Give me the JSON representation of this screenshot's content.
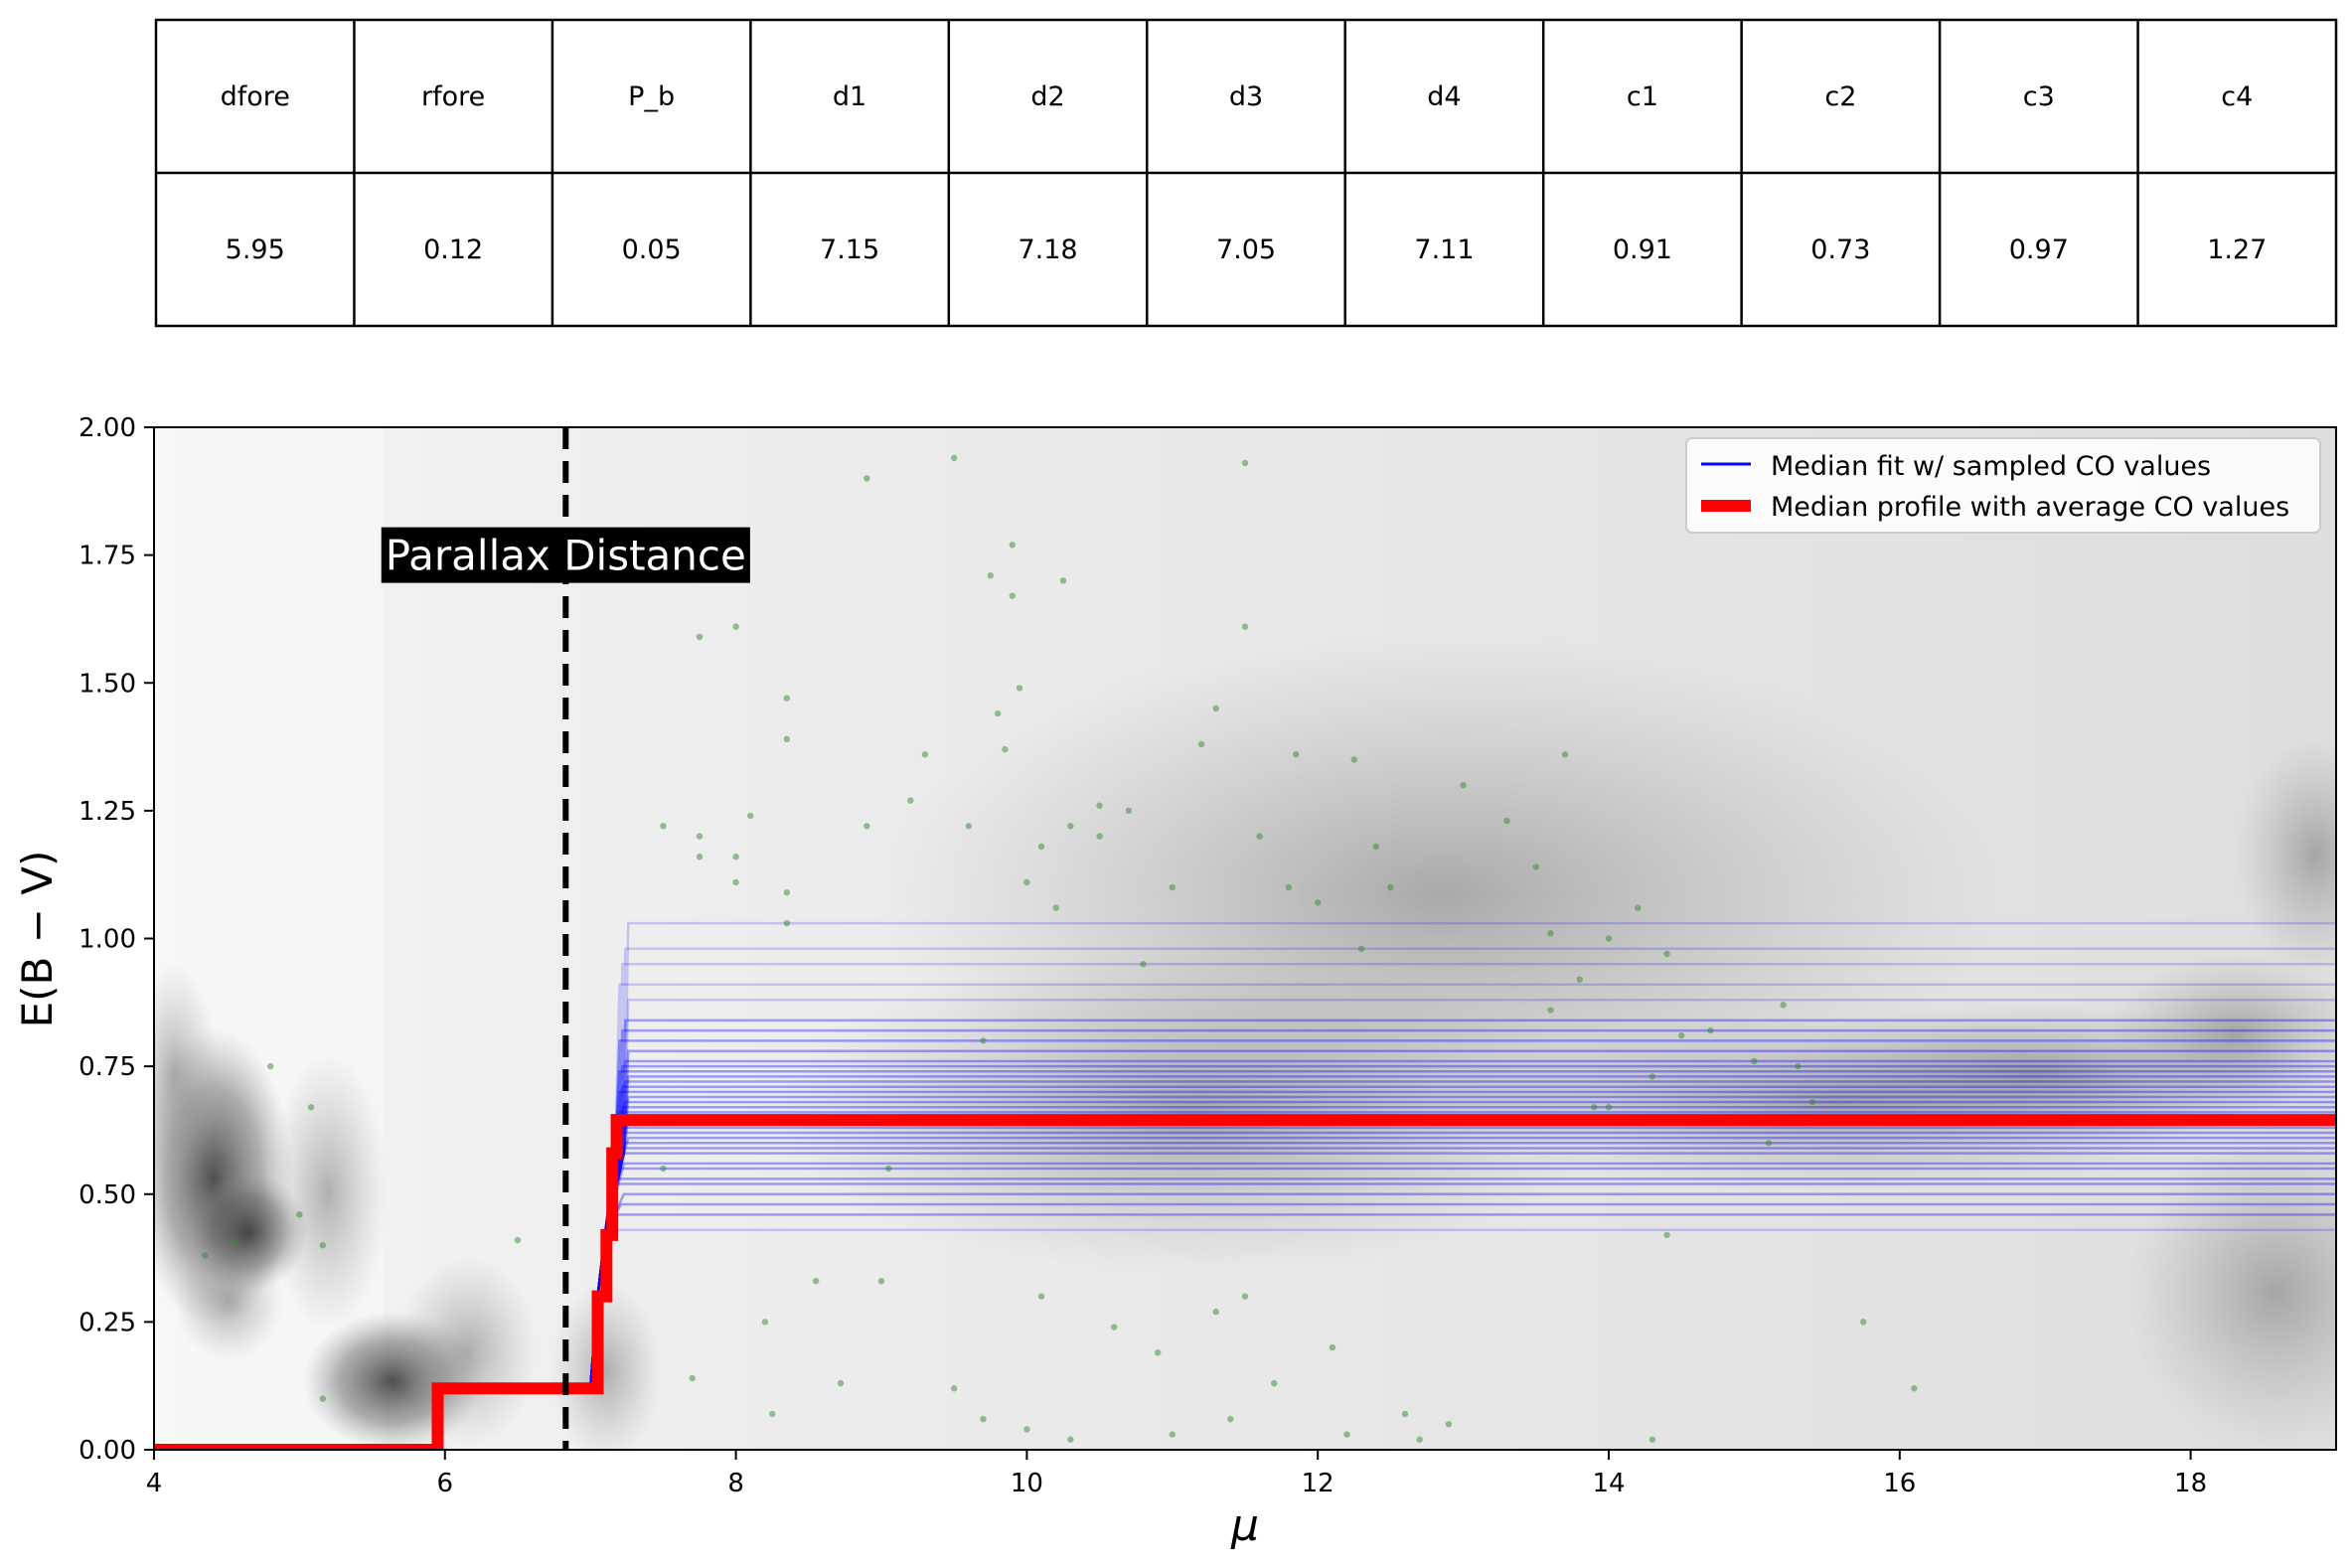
{
  "table": {
    "headers": [
      "dfore",
      "rfore",
      "P_b",
      "d1",
      "d2",
      "d3",
      "d4",
      "c1",
      "c2",
      "c3",
      "c4"
    ],
    "values": [
      "5.95",
      "0.12",
      "0.05",
      "7.15",
      "7.18",
      "7.05",
      "7.11",
      "0.91",
      "0.73",
      "0.97",
      "1.27"
    ]
  },
  "chart_data": {
    "type": "line",
    "xlabel": "μ",
    "ylabel": "E(B − V)",
    "xlim": [
      4,
      19
    ],
    "ylim": [
      0,
      2
    ],
    "xticks": [
      "4",
      "6",
      "8",
      "10",
      "12",
      "14",
      "16",
      "18"
    ],
    "yticks": [
      "0.00",
      "0.25",
      "0.50",
      "0.75",
      "1.00",
      "1.25",
      "1.50",
      "1.75",
      "2.00"
    ],
    "grid": false,
    "legend_position": "top-right",
    "annotation": {
      "text": "Parallax Distance",
      "x": 6.83
    },
    "parallax_distance": 6.83,
    "legend": [
      {
        "label": "Median fit w/ sampled CO values",
        "color": "#0000ff"
      },
      {
        "label": "Median profile with average CO values",
        "color": "#ff0000"
      }
    ],
    "series": [
      {
        "name": "Median profile with average CO values",
        "color": "#ff0000",
        "step_points": [
          [
            4.0,
            0.0
          ],
          [
            5.95,
            0.0
          ],
          [
            5.95,
            0.12
          ],
          [
            7.05,
            0.12
          ],
          [
            7.05,
            0.3
          ],
          [
            7.11,
            0.3
          ],
          [
            7.11,
            0.42
          ],
          [
            7.15,
            0.42
          ],
          [
            7.15,
            0.58
          ],
          [
            7.18,
            0.58
          ],
          [
            7.18,
            0.645
          ],
          [
            19.0,
            0.645
          ]
        ]
      },
      {
        "name": "Median fit w/ sampled CO values",
        "color": "#0000ff",
        "plateau_levels": [
          0.43,
          0.46,
          0.48,
          0.5,
          0.52,
          0.53,
          0.55,
          0.56,
          0.58,
          0.59,
          0.6,
          0.61,
          0.62,
          0.63,
          0.64,
          0.65,
          0.66,
          0.67,
          0.68,
          0.69,
          0.7,
          0.71,
          0.72,
          0.73,
          0.74,
          0.75,
          0.76,
          0.78,
          0.8,
          0.82,
          0.84,
          0.88,
          0.91,
          0.95,
          0.98,
          1.03
        ],
        "start_x": 7.2
      }
    ],
    "scatter_points": [
      [
        4.8,
        0.75
      ],
      [
        5.08,
        0.67
      ],
      [
        4.35,
        0.38
      ],
      [
        4.55,
        0.41
      ],
      [
        5.0,
        0.46
      ],
      [
        5.16,
        0.4
      ],
      [
        6.5,
        0.41
      ],
      [
        5.16,
        0.1
      ],
      [
        6.1,
        0.12
      ],
      [
        7.5,
        0.55
      ],
      [
        7.5,
        1.22
      ],
      [
        7.75,
        1.59
      ],
      [
        7.75,
        1.16
      ],
      [
        7.75,
        1.2
      ],
      [
        7.7,
        0.14
      ],
      [
        8.0,
        1.61
      ],
      [
        8.0,
        1.16
      ],
      [
        8.0,
        1.11
      ],
      [
        8.1,
        1.24
      ],
      [
        8.2,
        0.25
      ],
      [
        8.25,
        0.07
      ],
      [
        8.35,
        1.47
      ],
      [
        8.35,
        1.39
      ],
      [
        8.35,
        1.09
      ],
      [
        8.35,
        1.03
      ],
      [
        8.55,
        0.33
      ],
      [
        8.72,
        0.13
      ],
      [
        8.9,
        1.9
      ],
      [
        8.9,
        1.22
      ],
      [
        9.0,
        0.33
      ],
      [
        9.05,
        0.55
      ],
      [
        9.2,
        1.27
      ],
      [
        9.3,
        1.36
      ],
      [
        9.5,
        1.94
      ],
      [
        9.5,
        0.12
      ],
      [
        9.6,
        1.22
      ],
      [
        9.7,
        0.8
      ],
      [
        9.7,
        0.06
      ],
      [
        9.75,
        1.71
      ],
      [
        9.8,
        1.44
      ],
      [
        9.85,
        1.37
      ],
      [
        9.9,
        1.77
      ],
      [
        9.9,
        1.67
      ],
      [
        9.95,
        1.49
      ],
      [
        10.0,
        1.11
      ],
      [
        10.0,
        0.04
      ],
      [
        10.1,
        1.18
      ],
      [
        10.1,
        0.3
      ],
      [
        10.2,
        1.06
      ],
      [
        10.25,
        1.7
      ],
      [
        10.3,
        1.22
      ],
      [
        10.3,
        0.02
      ],
      [
        10.5,
        1.26
      ],
      [
        10.5,
        1.2
      ],
      [
        10.6,
        0.24
      ],
      [
        10.7,
        1.25
      ],
      [
        10.8,
        0.95
      ],
      [
        10.9,
        0.19
      ],
      [
        11.0,
        1.1
      ],
      [
        11.0,
        0.03
      ],
      [
        11.2,
        1.38
      ],
      [
        11.3,
        1.45
      ],
      [
        11.3,
        0.27
      ],
      [
        11.4,
        0.06
      ],
      [
        11.5,
        1.93
      ],
      [
        11.5,
        1.61
      ],
      [
        11.5,
        0.3
      ],
      [
        11.6,
        1.2
      ],
      [
        11.7,
        0.13
      ],
      [
        11.8,
        1.1
      ],
      [
        11.85,
        1.36
      ],
      [
        12.0,
        1.07
      ],
      [
        12.1,
        0.2
      ],
      [
        12.2,
        0.03
      ],
      [
        12.25,
        1.35
      ],
      [
        12.3,
        0.98
      ],
      [
        12.4,
        1.18
      ],
      [
        12.5,
        1.1
      ],
      [
        12.6,
        0.07
      ],
      [
        12.7,
        0.02
      ],
      [
        12.9,
        0.05
      ],
      [
        13.0,
        1.3
      ],
      [
        13.2,
        0.65
      ],
      [
        13.3,
        1.23
      ],
      [
        13.5,
        1.14
      ],
      [
        13.6,
        0.86
      ],
      [
        13.6,
        1.01
      ],
      [
        13.7,
        1.36
      ],
      [
        13.8,
        0.92
      ],
      [
        13.9,
        0.67
      ],
      [
        14.0,
        0.67
      ],
      [
        14.0,
        1.0
      ],
      [
        14.2,
        1.06
      ],
      [
        14.3,
        0.73
      ],
      [
        14.4,
        0.97
      ],
      [
        14.4,
        0.42
      ],
      [
        14.5,
        0.81
      ],
      [
        14.7,
        0.82
      ],
      [
        14.9,
        0.64
      ],
      [
        15.0,
        0.76
      ],
      [
        15.1,
        0.6
      ],
      [
        15.2,
        0.87
      ],
      [
        15.3,
        0.75
      ],
      [
        15.4,
        0.68
      ],
      [
        15.75,
        0.25
      ],
      [
        16.1,
        0.12
      ],
      [
        14.3,
        0.02
      ]
    ]
  }
}
